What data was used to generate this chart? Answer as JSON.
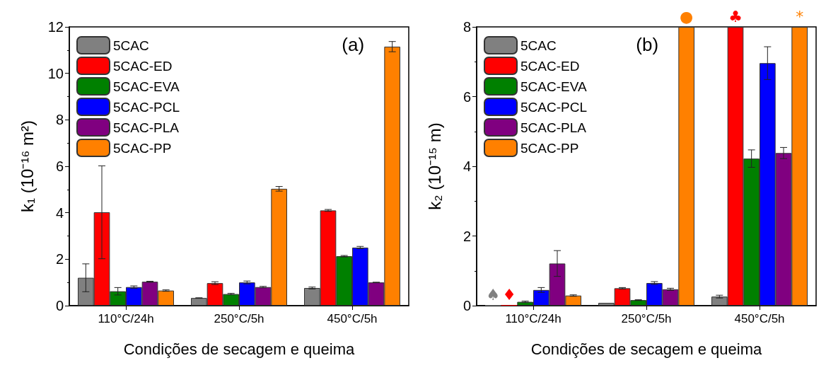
{
  "chart_data": [
    {
      "type": "bar",
      "ylabel": "k₁ (10⁻¹⁶ m²)",
      "xlabel": "Condições de secagem e queima",
      "annotations": [
        "(a)"
      ],
      "categories": [
        "110°C/24h",
        "250°C/5h",
        "450°C/5h"
      ],
      "ylim": [
        0,
        12
      ],
      "yticks": [
        0,
        2,
        4,
        6,
        8,
        10,
        12
      ],
      "grid": false,
      "legend": "top left",
      "series": [
        {
          "name": "5CAC",
          "color": "#808080",
          "values": [
            1.2,
            0.33,
            0.76
          ],
          "errors": [
            0.6,
            0.01,
            0.04
          ]
        },
        {
          "name": "5CAC-ED",
          "color": "#ff0000",
          "values": [
            4.02,
            0.97,
            4.1
          ],
          "errors": [
            2.0,
            0.06,
            0.04
          ]
        },
        {
          "name": "5CAC-EVA",
          "color": "#008000",
          "values": [
            0.62,
            0.5,
            2.13
          ],
          "errors": [
            0.16,
            0.03,
            0.03
          ]
        },
        {
          "name": "5CAC-PCL",
          "color": "#0000ff",
          "values": [
            0.8,
            1.0,
            2.5
          ],
          "errors": [
            0.05,
            0.06,
            0.05
          ]
        },
        {
          "name": "5CAC-PLA",
          "color": "#800080",
          "values": [
            1.03,
            0.8,
            1.0
          ],
          "errors": [
            0.02,
            0.03,
            0.01
          ]
        },
        {
          "name": "5CAC-PP",
          "color": "#ff8000",
          "values": [
            0.65,
            5.03,
            11.15
          ],
          "errors": [
            0.03,
            0.1,
            0.22
          ]
        }
      ]
    },
    {
      "type": "bar",
      "ylabel": "k₂ (10⁻¹⁵ m)",
      "xlabel": "Condições de secagem e queima",
      "annotations": [
        "(b)"
      ],
      "categories": [
        "110°C/24h",
        "250°C/5h",
        "450°C/5h"
      ],
      "ylim": [
        0,
        8
      ],
      "yticks": [
        0,
        2,
        4,
        6,
        8
      ],
      "grid": false,
      "legend": "top left",
      "series": [
        {
          "name": "5CAC",
          "color": "#808080",
          "values": [
            0.02,
            0.08,
            0.26
          ],
          "errors": [
            null,
            null,
            0.04
          ],
          "value_labels": [
            "♠",
            null,
            null
          ]
        },
        {
          "name": "5CAC-ED",
          "color": "#ff0000",
          "values": [
            0.02,
            0.5,
            8
          ],
          "errors": [
            null,
            0.02,
            null
          ],
          "value_labels": [
            "♦",
            null,
            "♣"
          ]
        },
        {
          "name": "5CAC-EVA",
          "color": "#008000",
          "values": [
            0.11,
            0.16,
            4.22
          ],
          "errors": [
            0.02,
            0.01,
            0.25
          ]
        },
        {
          "name": "5CAC-PCL",
          "color": "#0000ff",
          "values": [
            0.45,
            0.65,
            6.96
          ],
          "errors": [
            0.07,
            0.04,
            0.47
          ]
        },
        {
          "name": "5CAC-PLA",
          "color": "#800080",
          "values": [
            1.21,
            0.47,
            4.38
          ],
          "errors": [
            0.37,
            0.03,
            0.16
          ]
        },
        {
          "name": "5CAC-PP",
          "color": "#ff8000",
          "values": [
            0.29,
            8,
            8
          ],
          "errors": [
            0.02,
            null,
            null
          ],
          "value_labels": [
            null,
            "●",
            "*"
          ]
        }
      ]
    }
  ]
}
